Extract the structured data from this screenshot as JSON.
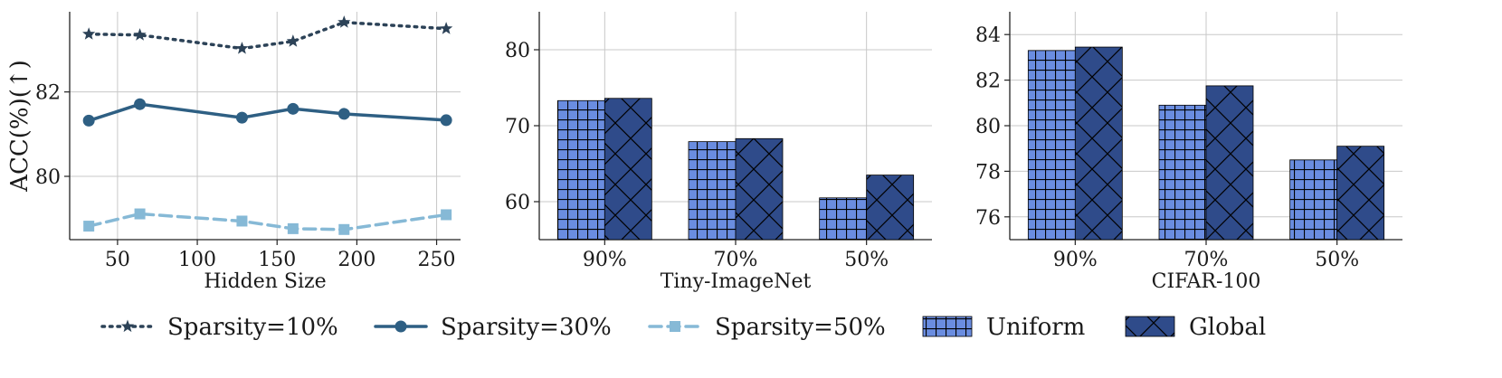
{
  "chart_data": [
    {
      "type": "line",
      "xlabel": "Hidden Size",
      "ylabel": "ACC(%)(↑)",
      "xlim": [
        20,
        265
      ],
      "ylim": [
        78.5,
        83.9
      ],
      "xticks": [
        50,
        100,
        150,
        200,
        250
      ],
      "yticks": [
        80,
        82
      ],
      "grid": true,
      "x": [
        32,
        64,
        128,
        160,
        192,
        256
      ],
      "series": [
        {
          "name": "Sparsity=10%",
          "values": [
            83.37,
            83.35,
            83.03,
            83.2,
            83.65,
            83.5
          ],
          "color": "#2c4257",
          "line": "dotted",
          "marker": "star"
        },
        {
          "name": "Sparsity=30%",
          "values": [
            81.32,
            81.71,
            81.39,
            81.6,
            81.48,
            81.33
          ],
          "color": "#2e5f83",
          "line": "solid",
          "marker": "circle"
        },
        {
          "name": "Sparsity=50%",
          "values": [
            78.82,
            79.11,
            78.94,
            78.76,
            78.74,
            79.09
          ],
          "color": "#86b9d6",
          "line": "dashed",
          "marker": "square"
        }
      ]
    },
    {
      "type": "bar",
      "xlabel": "Tiny-ImageNet",
      "ylabel": "",
      "categories": [
        "90%",
        "70%",
        "50%"
      ],
      "ylim": [
        55,
        85
      ],
      "yticks": [
        60,
        70,
        80
      ],
      "grid": true,
      "series": [
        {
          "name": "Uniform",
          "values": [
            73.3,
            67.9,
            60.5
          ],
          "color": "#6a8de0",
          "hatch": "grid"
        },
        {
          "name": "Global",
          "values": [
            73.6,
            68.3,
            63.5
          ],
          "color": "#2f4b8a",
          "hatch": "cross"
        }
      ]
    },
    {
      "type": "bar",
      "xlabel": "CIFAR-100",
      "ylabel": "",
      "categories": [
        "90%",
        "70%",
        "50%"
      ],
      "ylim": [
        75,
        85
      ],
      "yticks": [
        76,
        78,
        80,
        82,
        84
      ],
      "grid": true,
      "series": [
        {
          "name": "Uniform",
          "values": [
            83.3,
            80.9,
            78.5
          ],
          "color": "#6a8de0",
          "hatch": "grid"
        },
        {
          "name": "Global",
          "values": [
            83.45,
            81.75,
            79.1
          ],
          "color": "#2f4b8a",
          "hatch": "cross"
        }
      ]
    }
  ],
  "legend": {
    "placement": "bottom",
    "items": [
      {
        "label": "Sparsity=10%",
        "kind": "line",
        "color": "#2c4257",
        "line": "dotted",
        "marker": "star"
      },
      {
        "label": "Sparsity=30%",
        "kind": "line",
        "color": "#2e5f83",
        "line": "solid",
        "marker": "circle"
      },
      {
        "label": "Sparsity=50%",
        "kind": "line",
        "color": "#86b9d6",
        "line": "dashed",
        "marker": "square"
      },
      {
        "label": "Uniform",
        "kind": "bar",
        "color": "#6a8de0",
        "hatch": "grid"
      },
      {
        "label": "Global",
        "kind": "bar",
        "color": "#2f4b8a",
        "hatch": "cross"
      }
    ]
  }
}
